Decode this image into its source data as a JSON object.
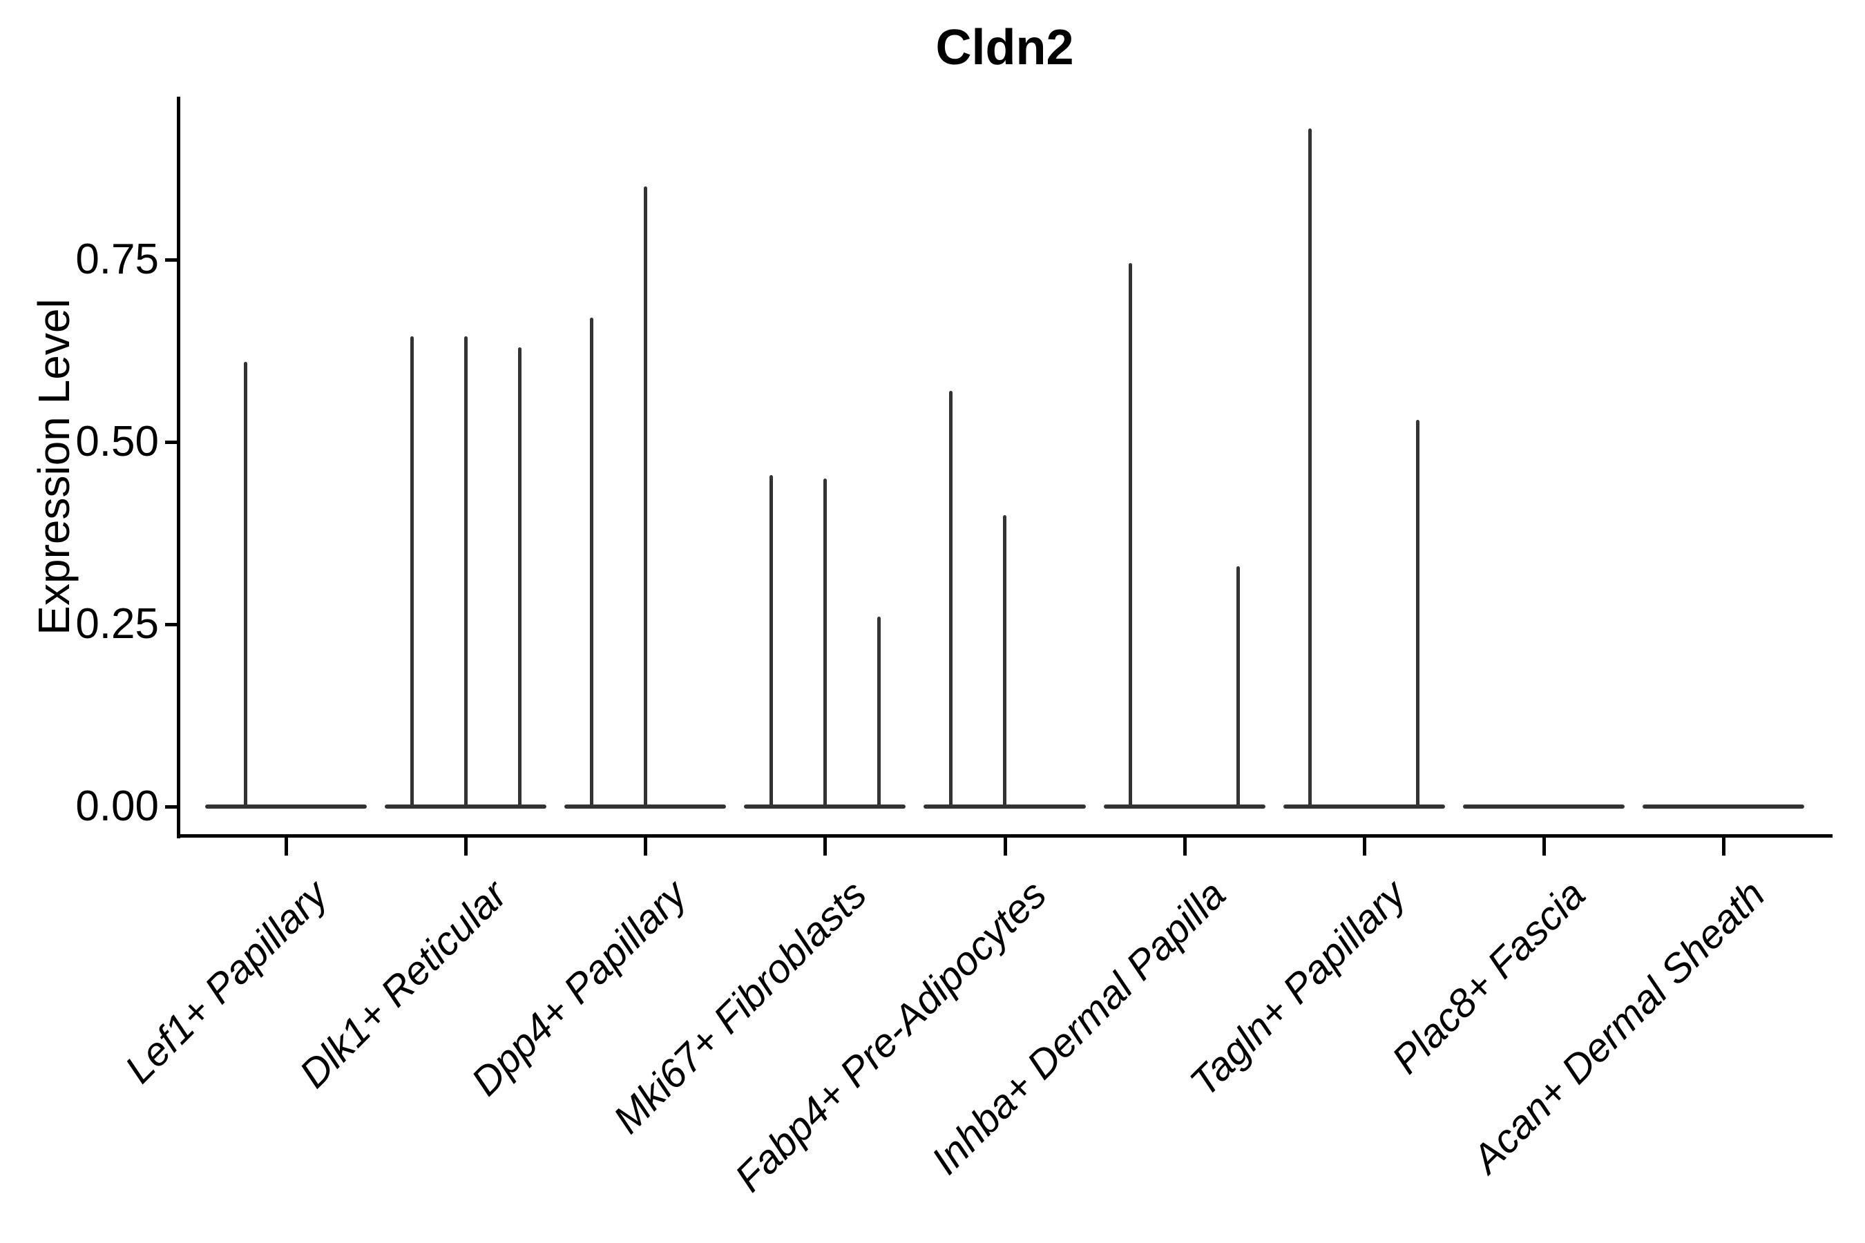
{
  "figure": {
    "title": "Cldn2",
    "background": "#ffffff"
  },
  "chart_data": {
    "type": "violin",
    "title": "Cldn2",
    "xlabel": "",
    "ylabel": "Expression Level",
    "y_tick_labels": [
      "0.00",
      "0.25",
      "0.50",
      "0.75"
    ],
    "y_tick_values": [
      0,
      0.25,
      0.5,
      0.75
    ],
    "ylim": [
      -0.04,
      0.973
    ],
    "grid": false,
    "legend": "none",
    "categories": [
      "Lef1+ Papillary",
      "Dlk1+ Reticular",
      "Dpp4+ Papillary",
      "Mki67+ Fibroblasts",
      "Fabp4+ Pre-Adipocytes",
      "Inhba+ Dermal Papilla",
      "Tagln+ Papillary",
      "Plac8+ Fascia",
      "Acan+ Dermal Sheath"
    ],
    "violin_total_half_width": 0.45,
    "violins": [
      {
        "category": "Lef1+ Papillary",
        "spikes": [
          {
            "offset": -0.225,
            "max": 0.61
          }
        ]
      },
      {
        "category": "Dlk1+ Reticular",
        "spikes": [
          {
            "offset": -0.3,
            "max": 0.645
          },
          {
            "offset": 0,
            "max": 0.645
          },
          {
            "offset": 0.3,
            "max": 0.63
          }
        ]
      },
      {
        "category": "Dpp4+ Papillary",
        "spikes": [
          {
            "offset": -0.3,
            "max": 0.67
          },
          {
            "offset": 0,
            "max": 0.85
          }
        ]
      },
      {
        "category": "Mki67+ Fibroblasts",
        "spikes": [
          {
            "offset": -0.3,
            "max": 0.455
          },
          {
            "offset": 0,
            "max": 0.45
          },
          {
            "offset": 0.3,
            "max": 0.26
          }
        ]
      },
      {
        "category": "Fabp4+ Pre-Adipocytes",
        "spikes": [
          {
            "offset": -0.3,
            "max": 0.57
          },
          {
            "offset": 0,
            "max": 0.4
          }
        ]
      },
      {
        "category": "Inhba+ Dermal Papilla",
        "spikes": [
          {
            "offset": -0.3,
            "max": 0.745
          },
          {
            "offset": 0.3,
            "max": 0.33
          }
        ]
      },
      {
        "category": "Tagln+ Papillary",
        "spikes": [
          {
            "offset": -0.3,
            "max": 0.93
          },
          {
            "offset": 0.3,
            "max": 0.53
          }
        ]
      },
      {
        "category": "Plac8+ Fascia",
        "spikes": []
      },
      {
        "category": "Acan+ Dermal Sheath",
        "spikes": []
      }
    ],
    "colors": {
      "violin_line": "#333333",
      "axis_line": "#000000",
      "text": "#000000"
    }
  }
}
